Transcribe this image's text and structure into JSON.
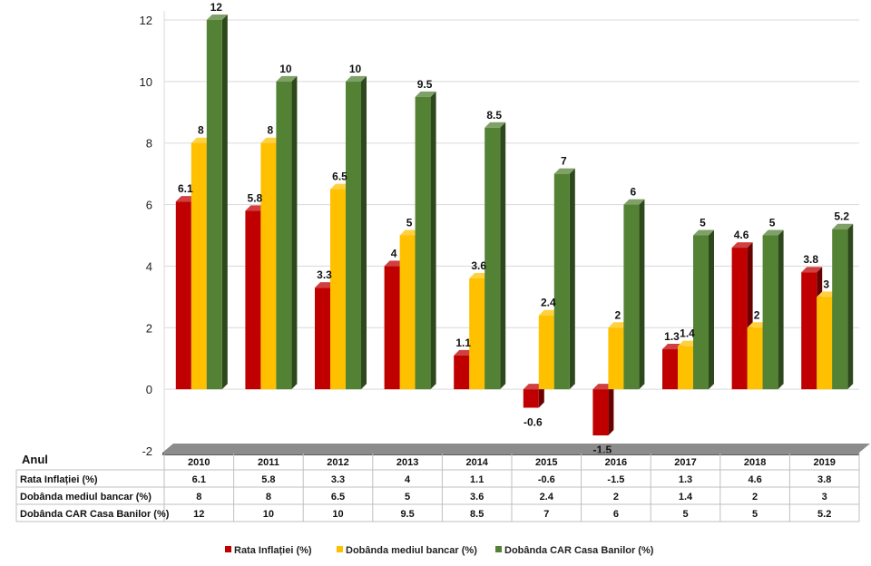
{
  "chart_data": {
    "type": "bar",
    "categories": [
      "2010",
      "2011",
      "2012",
      "2013",
      "2014",
      "2015",
      "2016",
      "2017",
      "2018",
      "2019"
    ],
    "series": [
      {
        "name": "Rata Inflației (%)",
        "color": "#c00000",
        "values": [
          6.1,
          5.8,
          3.3,
          4,
          1.1,
          -0.6,
          -1.5,
          1.3,
          4.6,
          3.8
        ]
      },
      {
        "name": "Dobânda mediul bancar (%)",
        "color": "#ffc000",
        "values": [
          8,
          8,
          6.5,
          5,
          3.6,
          2.4,
          2,
          1.4,
          2,
          3
        ]
      },
      {
        "name": "Dobânda CAR Casa Banilor (%)",
        "color": "#548235",
        "values": [
          12,
          10,
          10,
          9.5,
          8.5,
          7,
          6,
          5,
          5,
          5.2
        ]
      }
    ],
    "ylim": [
      -2,
      12
    ],
    "yticks": [
      -2,
      0,
      2,
      4,
      6,
      8,
      10,
      12
    ],
    "grid": true,
    "table_corner_label": "Anul",
    "legend_position": "bottom",
    "data_labels": true,
    "data_table": true
  }
}
